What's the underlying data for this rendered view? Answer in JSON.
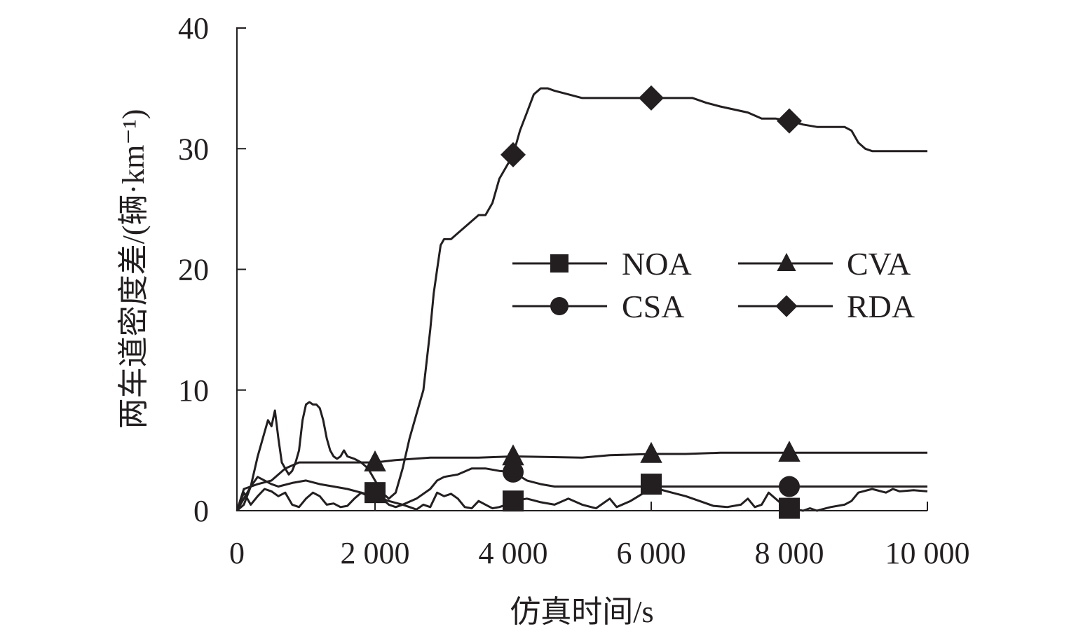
{
  "chart_data": {
    "type": "line",
    "title": "",
    "xlabel": "仿真时间/s",
    "ylabel": "两车道密度差/(辆·km⁻¹)",
    "xlim": [
      0,
      10000
    ],
    "ylim": [
      0,
      40
    ],
    "x_ticks": [
      0,
      2000,
      4000,
      6000,
      8000,
      10000
    ],
    "x_tick_labels": [
      "0",
      "2 000",
      "4 000",
      "6 000",
      "8 000",
      "10 000"
    ],
    "y_ticks": [
      0,
      10,
      20,
      30,
      40
    ],
    "y_tick_labels": [
      "0",
      "10",
      "20",
      "30",
      "40"
    ],
    "grid": false,
    "legend_position": "center-right",
    "series": [
      {
        "name": "NOA",
        "marker": "square",
        "markers_x": [
          2000,
          4000,
          6000,
          8000
        ],
        "x": [
          0,
          100,
          200,
          300,
          400,
          500,
          600,
          700,
          800,
          900,
          1000,
          1100,
          1200,
          1300,
          1400,
          1500,
          1600,
          1700,
          1800,
          1900,
          2000,
          2100,
          2200,
          2300,
          2400,
          2500,
          2600,
          2700,
          2800,
          2900,
          3000,
          3100,
          3200,
          3300,
          3400,
          3500,
          3600,
          3700,
          3800,
          3900,
          4000,
          4200,
          4400,
          4600,
          4800,
          5000,
          5200,
          5400,
          5500,
          5700,
          5900,
          6000,
          6100,
          6300,
          6500,
          6700,
          6900,
          7100,
          7300,
          7400,
          7500,
          7600,
          7700,
          7800,
          7900,
          8000,
          8100,
          8200,
          8300,
          8400,
          8600,
          8800,
          8900,
          9000,
          9200,
          9400,
          9500,
          9600,
          9800,
          10000
        ],
        "y": [
          0,
          1.5,
          0.5,
          1.2,
          1.8,
          1.6,
          1.2,
          1.5,
          0.5,
          0.3,
          1.0,
          1.5,
          1.2,
          0.5,
          0.6,
          0.3,
          0.4,
          1.0,
          1.5,
          1.2,
          1.5,
          1.0,
          0.5,
          0.3,
          0.5,
          0.3,
          0.1,
          0.5,
          0.3,
          1.5,
          1.2,
          1.4,
          1.0,
          0.3,
          0.2,
          0.8,
          0.5,
          0.2,
          0.3,
          0.5,
          0.8,
          1.0,
          0.7,
          0.5,
          1.0,
          0.5,
          0.2,
          1.0,
          0.3,
          0.8,
          1.5,
          2.2,
          1.8,
          1.5,
          1.2,
          0.8,
          0.4,
          0.3,
          0.5,
          1.0,
          0.3,
          0.5,
          1.5,
          1.0,
          0.5,
          0.2,
          0.1,
          0.0,
          0.2,
          0.0,
          0.3,
          0.5,
          0.8,
          1.5,
          1.8,
          1.5,
          1.8,
          1.6,
          1.7,
          1.6
        ]
      },
      {
        "name": "CVA",
        "marker": "triangle",
        "markers_x": [
          2000,
          4000,
          6000,
          8000
        ],
        "x": [
          0,
          100,
          300,
          500,
          700,
          900,
          1000,
          1500,
          2000,
          2300,
          2800,
          3500,
          4000,
          5000,
          5400,
          6000,
          6500,
          7000,
          7500,
          8000,
          10000
        ],
        "y": [
          0,
          1.8,
          2.2,
          2.5,
          3.5,
          4.0,
          4.0,
          4.0,
          4.0,
          4.2,
          4.4,
          4.4,
          4.5,
          4.4,
          4.6,
          4.7,
          4.7,
          4.8,
          4.8,
          4.8,
          4.8
        ]
      },
      {
        "name": "CSA",
        "marker": "circle",
        "markers_x": [
          4000,
          8000
        ],
        "x": [
          0,
          100,
          200,
          300,
          400,
          500,
          600,
          800,
          1000,
          1200,
          1400,
          1600,
          1800,
          2000,
          2200,
          2400,
          2600,
          2800,
          2900,
          3000,
          3200,
          3400,
          3600,
          3800,
          4000,
          4200,
          4400,
          4600,
          5000,
          6000,
          7000,
          8000,
          10000
        ],
        "y": [
          0,
          1.0,
          2.0,
          2.8,
          2.5,
          2.2,
          2.0,
          2.3,
          2.5,
          2.2,
          2.0,
          1.8,
          1.5,
          1.2,
          0.8,
          0.5,
          1.0,
          1.8,
          2.5,
          2.8,
          3.0,
          3.5,
          3.5,
          3.3,
          3.2,
          2.5,
          2.2,
          2.0,
          2.0,
          2.0,
          2.0,
          2.0,
          2.0
        ]
      },
      {
        "name": "RDA",
        "marker": "diamond",
        "markers_x": [
          4000,
          6000,
          8000
        ],
        "x": [
          0,
          100,
          200,
          300,
          400,
          450,
          500,
          550,
          600,
          650,
          700,
          750,
          800,
          850,
          900,
          950,
          1000,
          1050,
          1100,
          1150,
          1200,
          1250,
          1300,
          1350,
          1400,
          1450,
          1500,
          1550,
          1600,
          1700,
          1800,
          1900,
          2000,
          2100,
          2200,
          2300,
          2400,
          2500,
          2600,
          2700,
          2750,
          2800,
          2850,
          2900,
          2950,
          3000,
          3100,
          3200,
          3300,
          3400,
          3500,
          3600,
          3700,
          3800,
          3900,
          4000,
          4100,
          4200,
          4300,
          4400,
          4500,
          4600,
          4800,
          5000,
          5500,
          6000,
          6600,
          6800,
          7000,
          7400,
          7600,
          7800,
          8000,
          8200,
          8400,
          8800,
          8900,
          9000,
          9100,
          9200,
          10000
        ],
        "y": [
          0,
          0.5,
          2.0,
          4.5,
          6.5,
          7.5,
          7.0,
          8.3,
          6.0,
          4.0,
          3.5,
          3.0,
          3.3,
          4.0,
          5.0,
          7.5,
          8.8,
          9.0,
          8.8,
          8.8,
          8.5,
          7.5,
          6.0,
          5.0,
          4.5,
          4.3,
          4.5,
          5.0,
          4.5,
          4.3,
          4.0,
          3.5,
          2.5,
          1.5,
          1.0,
          1.5,
          3.5,
          6.0,
          8.0,
          10.0,
          12.5,
          15.0,
          18.0,
          20.0,
          22.0,
          22.5,
          22.5,
          23.0,
          23.5,
          24.0,
          24.5,
          24.5,
          25.5,
          27.5,
          28.5,
          29.5,
          31.5,
          33.0,
          34.5,
          35.0,
          35.0,
          34.8,
          34.5,
          34.2,
          34.2,
          34.2,
          34.2,
          33.8,
          33.5,
          33.0,
          32.5,
          32.5,
          32.3,
          32.0,
          31.8,
          31.8,
          31.5,
          30.5,
          30.0,
          29.8,
          29.8
        ]
      }
    ]
  }
}
